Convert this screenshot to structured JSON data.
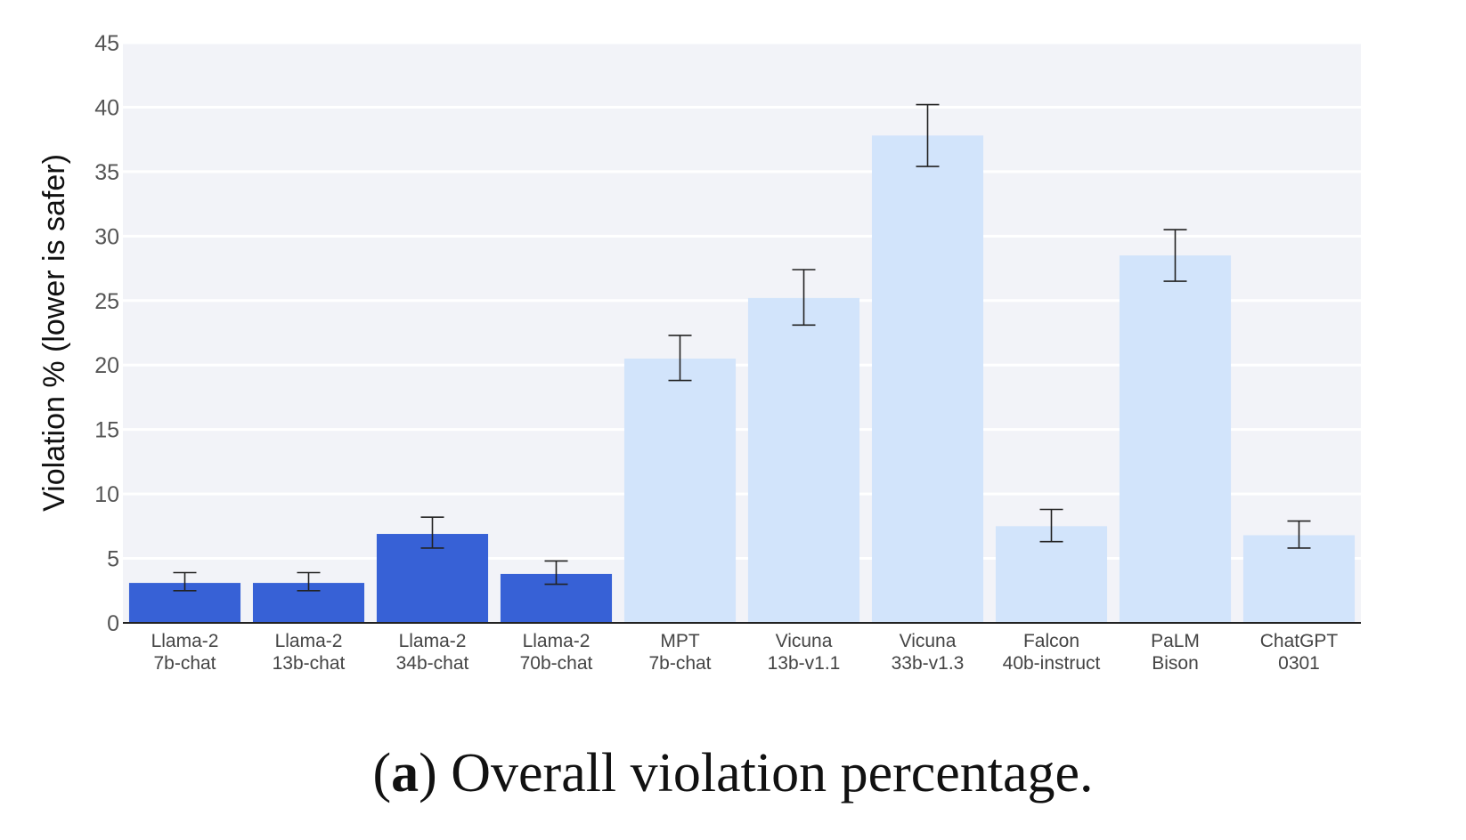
{
  "chart_data": {
    "type": "bar",
    "title": "",
    "xlabel": "",
    "ylabel": "Violation % (lower is safer)",
    "ylim": [
      0,
      45
    ],
    "yticks": [
      0,
      5,
      10,
      15,
      20,
      25,
      30,
      35,
      40,
      45
    ],
    "grid": true,
    "categories": [
      [
        "Llama-2",
        "7b-chat"
      ],
      [
        "Llama-2",
        "13b-chat"
      ],
      [
        "Llama-2",
        "34b-chat"
      ],
      [
        "Llama-2",
        "70b-chat"
      ],
      [
        "MPT",
        "7b-chat"
      ],
      [
        "Vicuna",
        "13b-v1.1"
      ],
      [
        "Vicuna",
        "33b-v1.3"
      ],
      [
        "Falcon",
        "40b-instruct"
      ],
      [
        "PaLM",
        "Bison"
      ],
      [
        "ChatGPT",
        "0301"
      ]
    ],
    "values": [
      3.1,
      3.1,
      6.9,
      3.8,
      20.5,
      25.2,
      37.8,
      7.5,
      28.5,
      6.8
    ],
    "error_low": [
      2.5,
      2.5,
      5.8,
      3.0,
      18.8,
      23.1,
      35.4,
      6.3,
      26.5,
      5.8
    ],
    "error_high": [
      3.9,
      3.9,
      8.2,
      4.8,
      22.3,
      27.4,
      40.2,
      8.8,
      30.5,
      7.9
    ],
    "bar_colors": [
      "#3761d6",
      "#3761d6",
      "#3761d6",
      "#3761d6",
      "#d2e4fb",
      "#d2e4fb",
      "#d2e4fb",
      "#d2e4fb",
      "#d2e4fb",
      "#d2e4fb"
    ],
    "plot_background": "#f2f3f8",
    "grid_color": "#ffffff"
  },
  "caption": {
    "tag": "a",
    "text": "Overall violation percentage."
  }
}
